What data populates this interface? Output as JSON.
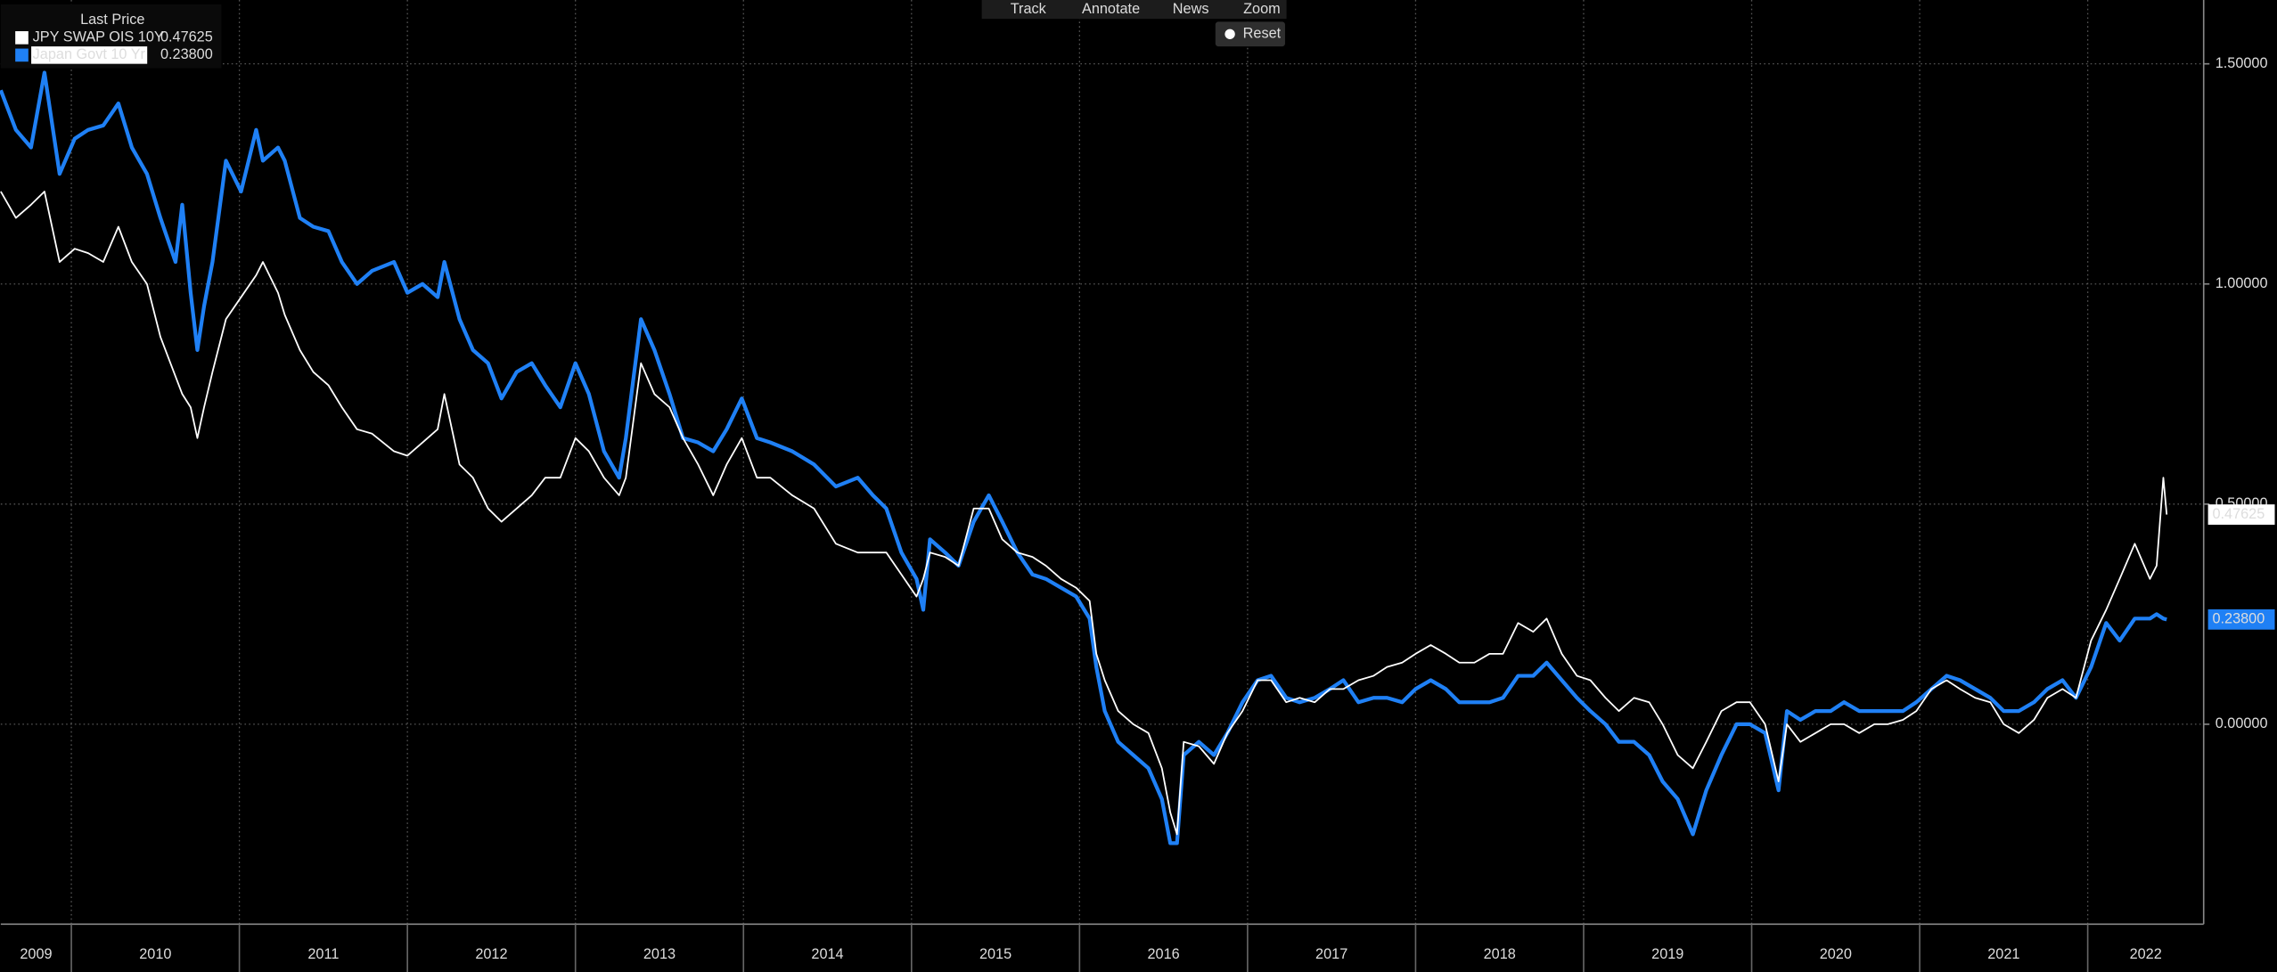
{
  "toolbar": {
    "buttons": [
      "Track",
      "Annotate",
      "News",
      "Zoom"
    ],
    "reset": "Reset"
  },
  "chart_data": {
    "type": "line",
    "legend_title": "Last Price",
    "xlim": [
      2009.58,
      2022.69
    ],
    "xticks": [
      {
        "value": 2009,
        "label": "2009"
      },
      {
        "value": 2010,
        "label": "2010"
      },
      {
        "value": 2011,
        "label": "2011"
      },
      {
        "value": 2012,
        "label": "2012"
      },
      {
        "value": 2013,
        "label": "2013"
      },
      {
        "value": 2014,
        "label": "2014"
      },
      {
        "value": 2015,
        "label": "2015"
      },
      {
        "value": 2016,
        "label": "2016"
      },
      {
        "value": 2017,
        "label": "2017"
      },
      {
        "value": 2018,
        "label": "2018"
      },
      {
        "value": 2019,
        "label": "2019"
      },
      {
        "value": 2020,
        "label": "2020"
      },
      {
        "value": 2021,
        "label": "2021"
      },
      {
        "value": 2022,
        "label": "2022"
      }
    ],
    "ylim": [
      -0.454,
      1.645
    ],
    "yticks": [
      {
        "value": 0,
        "label": "0.00000"
      },
      {
        "value": 0.5,
        "label": "0.50000"
      },
      {
        "value": 1,
        "label": "1.00000"
      },
      {
        "value": 1.5,
        "label": "1.50000"
      }
    ],
    "grid": true,
    "x": [
      2009.58,
      2009.67,
      2009.76,
      2009.84,
      2009.93,
      2010.02,
      2010.1,
      2010.19,
      2010.28,
      2010.36,
      2010.45,
      2010.53,
      2010.62,
      2010.66,
      2010.71,
      2010.75,
      2010.79,
      2010.84,
      2010.92,
      2011.01,
      2011.1,
      2011.14,
      2011.23,
      2011.27,
      2011.36,
      2011.44,
      2011.53,
      2011.61,
      2011.7,
      2011.79,
      2011.92,
      2012.0,
      2012.09,
      2012.18,
      2012.22,
      2012.31,
      2012.39,
      2012.48,
      2012.56,
      2012.65,
      2012.74,
      2012.82,
      2012.91,
      2013.0,
      2013.08,
      2013.17,
      2013.26,
      2013.3,
      2013.39,
      2013.47,
      2013.56,
      2013.64,
      2013.73,
      2013.82,
      2013.9,
      2013.99,
      2014.08,
      2014.16,
      2014.29,
      2014.42,
      2014.55,
      2014.68,
      2014.77,
      2014.85,
      2014.94,
      2015.03,
      2015.07,
      2015.11,
      2015.2,
      2015.28,
      2015.37,
      2015.46,
      2015.54,
      2015.63,
      2015.72,
      2015.8,
      2015.89,
      2015.98,
      2016.06,
      2016.1,
      2016.15,
      2016.23,
      2016.32,
      2016.41,
      2016.49,
      2016.54,
      2016.58,
      2016.62,
      2016.71,
      2016.8,
      2016.88,
      2016.97,
      2017.06,
      2017.14,
      2017.23,
      2017.31,
      2017.4,
      2017.49,
      2017.57,
      2017.66,
      2017.75,
      2017.83,
      2017.92,
      2018.0,
      2018.09,
      2018.18,
      2018.26,
      2018.35,
      2018.44,
      2018.52,
      2018.61,
      2018.7,
      2018.78,
      2018.87,
      2018.96,
      2019.04,
      2019.13,
      2019.21,
      2019.3,
      2019.39,
      2019.47,
      2019.56,
      2019.65,
      2019.73,
      2019.82,
      2019.91,
      2019.99,
      2020.08,
      2020.16,
      2020.21,
      2020.29,
      2020.38,
      2020.47,
      2020.55,
      2020.64,
      2020.73,
      2020.81,
      2020.9,
      2020.98,
      2021.07,
      2021.16,
      2021.24,
      2021.33,
      2021.42,
      2021.5,
      2021.59,
      2021.68,
      2021.76,
      2021.85,
      2021.93,
      2022.02,
      2022.11,
      2022.19,
      2022.28,
      2022.37,
      2022.41,
      2022.45,
      2022.47
    ],
    "series": [
      {
        "name": "Japan Govt 10 Yr",
        "color": "#1f80f5",
        "last_value": {
          "value": 0.238,
          "label": "0.23800"
        },
        "values": [
          1.44,
          1.35,
          1.31,
          1.48,
          1.25,
          1.33,
          1.35,
          1.36,
          1.41,
          1.31,
          1.25,
          1.15,
          1.05,
          1.18,
          0.98,
          0.85,
          0.95,
          1.05,
          1.28,
          1.21,
          1.35,
          1.28,
          1.31,
          1.28,
          1.15,
          1.13,
          1.12,
          1.05,
          1.0,
          1.03,
          1.05,
          0.98,
          1.0,
          0.97,
          1.05,
          0.92,
          0.85,
          0.82,
          0.74,
          0.8,
          0.82,
          0.77,
          0.72,
          0.82,
          0.75,
          0.62,
          0.56,
          0.65,
          0.92,
          0.85,
          0.75,
          0.65,
          0.64,
          0.62,
          0.67,
          0.74,
          0.65,
          0.64,
          0.62,
          0.59,
          0.54,
          0.56,
          0.52,
          0.49,
          0.39,
          0.33,
          0.26,
          0.42,
          0.39,
          0.36,
          0.46,
          0.52,
          0.46,
          0.39,
          0.34,
          0.33,
          0.31,
          0.29,
          0.24,
          0.13,
          0.03,
          -0.04,
          -0.07,
          -0.1,
          -0.17,
          -0.27,
          -0.27,
          -0.07,
          -0.04,
          -0.07,
          -0.02,
          0.05,
          0.1,
          0.11,
          0.06,
          0.05,
          0.06,
          0.08,
          0.1,
          0.05,
          0.06,
          0.06,
          0.05,
          0.08,
          0.1,
          0.08,
          0.05,
          0.05,
          0.05,
          0.06,
          0.11,
          0.11,
          0.14,
          0.1,
          0.06,
          0.03,
          0.0,
          -0.04,
          -0.04,
          -0.07,
          -0.13,
          -0.17,
          -0.25,
          -0.15,
          -0.07,
          0.0,
          0.0,
          -0.02,
          -0.15,
          0.03,
          0.01,
          0.03,
          0.03,
          0.05,
          0.03,
          0.03,
          0.03,
          0.03,
          0.05,
          0.08,
          0.11,
          0.1,
          0.08,
          0.06,
          0.03,
          0.03,
          0.05,
          0.08,
          0.1,
          0.06,
          0.13,
          0.23,
          0.19,
          0.24,
          0.24,
          0.25,
          0.24,
          0.238
        ]
      },
      {
        "name": "JPY SWAP OIS 10Y",
        "color": "#ffffff",
        "last_value": {
          "value": 0.47625,
          "label": "0.47625"
        },
        "values": [
          1.21,
          1.15,
          1.18,
          1.21,
          1.05,
          1.08,
          1.07,
          1.05,
          1.13,
          1.05,
          1.0,
          0.88,
          0.79,
          0.75,
          0.72,
          0.65,
          0.72,
          0.8,
          0.92,
          0.97,
          1.02,
          1.05,
          0.98,
          0.93,
          0.85,
          0.8,
          0.77,
          0.72,
          0.67,
          0.66,
          0.62,
          0.61,
          0.64,
          0.67,
          0.75,
          0.59,
          0.56,
          0.49,
          0.46,
          0.49,
          0.52,
          0.56,
          0.56,
          0.65,
          0.62,
          0.56,
          0.52,
          0.56,
          0.82,
          0.75,
          0.72,
          0.65,
          0.59,
          0.52,
          0.59,
          0.65,
          0.56,
          0.56,
          0.52,
          0.49,
          0.41,
          0.39,
          0.39,
          0.39,
          0.34,
          0.29,
          0.33,
          0.39,
          0.38,
          0.36,
          0.49,
          0.49,
          0.42,
          0.39,
          0.38,
          0.36,
          0.33,
          0.31,
          0.28,
          0.16,
          0.1,
          0.03,
          0.0,
          -0.02,
          -0.1,
          -0.2,
          -0.25,
          -0.04,
          -0.05,
          -0.09,
          -0.02,
          0.03,
          0.1,
          0.1,
          0.05,
          0.06,
          0.05,
          0.08,
          0.08,
          0.1,
          0.11,
          0.13,
          0.14,
          0.16,
          0.18,
          0.16,
          0.14,
          0.14,
          0.16,
          0.16,
          0.23,
          0.21,
          0.24,
          0.16,
          0.11,
          0.1,
          0.06,
          0.03,
          0.06,
          0.05,
          0.0,
          -0.07,
          -0.1,
          -0.04,
          0.03,
          0.05,
          0.05,
          0.0,
          -0.13,
          0.0,
          -0.04,
          -0.02,
          0.0,
          0.0,
          -0.02,
          0.0,
          0.0,
          0.01,
          0.03,
          0.08,
          0.1,
          0.08,
          0.06,
          0.05,
          0.0,
          -0.02,
          0.01,
          0.06,
          0.08,
          0.06,
          0.19,
          0.26,
          0.33,
          0.41,
          0.33,
          0.36,
          0.56,
          0.47625
        ]
      }
    ]
  }
}
